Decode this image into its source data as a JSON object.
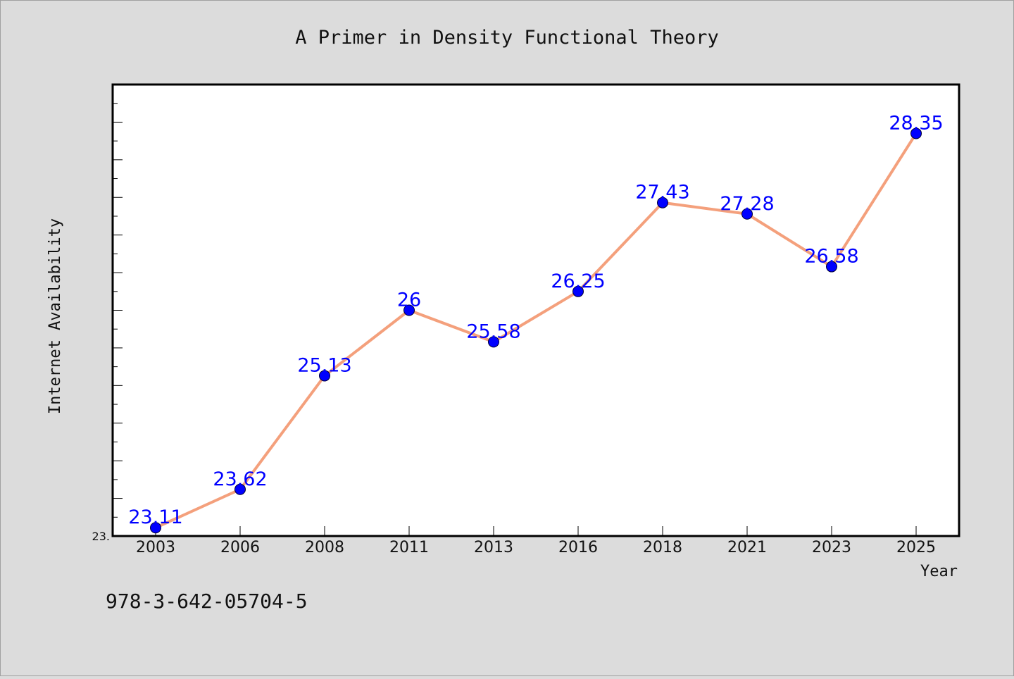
{
  "chart_data": {
    "type": "line",
    "title": "A Primer in Density Functional Theory",
    "xlabel": "Year",
    "ylabel": "Internet Availability",
    "categories": [
      "2003",
      "2006",
      "2008",
      "2011",
      "2013",
      "2016",
      "2018",
      "2021",
      "2023",
      "2025"
    ],
    "series": [
      {
        "values": [
          23.11,
          23.62,
          25.13,
          26,
          25.58,
          26.25,
          27.43,
          27.28,
          26.58,
          28.35
        ],
        "labels": [
          "23.11",
          "23.62",
          "25.13",
          "26",
          "25.58",
          "26.25",
          "27.43",
          "27.28",
          "26.58",
          "28.35"
        ]
      }
    ],
    "ylim": [
      23.0,
      29.0
    ],
    "ytick_labels": [
      "23."
    ],
    "grid": false,
    "colors": {
      "line": "#f4a07c",
      "marker": "#0000ff",
      "data_label": "#0000ff",
      "background": "#dcdcdc",
      "plot_background": "#ffffff"
    }
  },
  "footnote": "978-3-642-05704-5"
}
